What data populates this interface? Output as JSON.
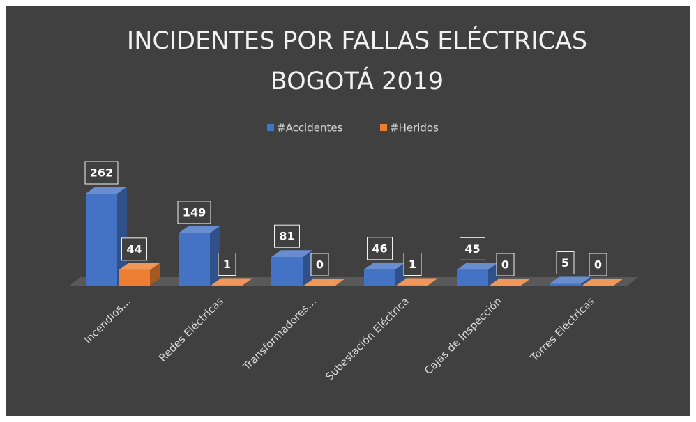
{
  "chart_data": {
    "type": "bar3d",
    "title": [
      "INCIDENTES POR FALLAS ELÉCTRICAS",
      "BOGOTÁ 2019"
    ],
    "categories": [
      "Incendios…",
      "Redes Eléctricas",
      "Transformadores…",
      "Subestación Eléctrica",
      "Cajas de Inspección",
      "Torres Eléctricas"
    ],
    "series": [
      {
        "name": "#Accidentes",
        "color": "#4472c4",
        "values": [
          262,
          149,
          81,
          46,
          45,
          5
        ]
      },
      {
        "name": "#Heridos",
        "color": "#ed7d31",
        "values": [
          44,
          1,
          0,
          1,
          0,
          0
        ]
      }
    ],
    "legend": "top"
  }
}
